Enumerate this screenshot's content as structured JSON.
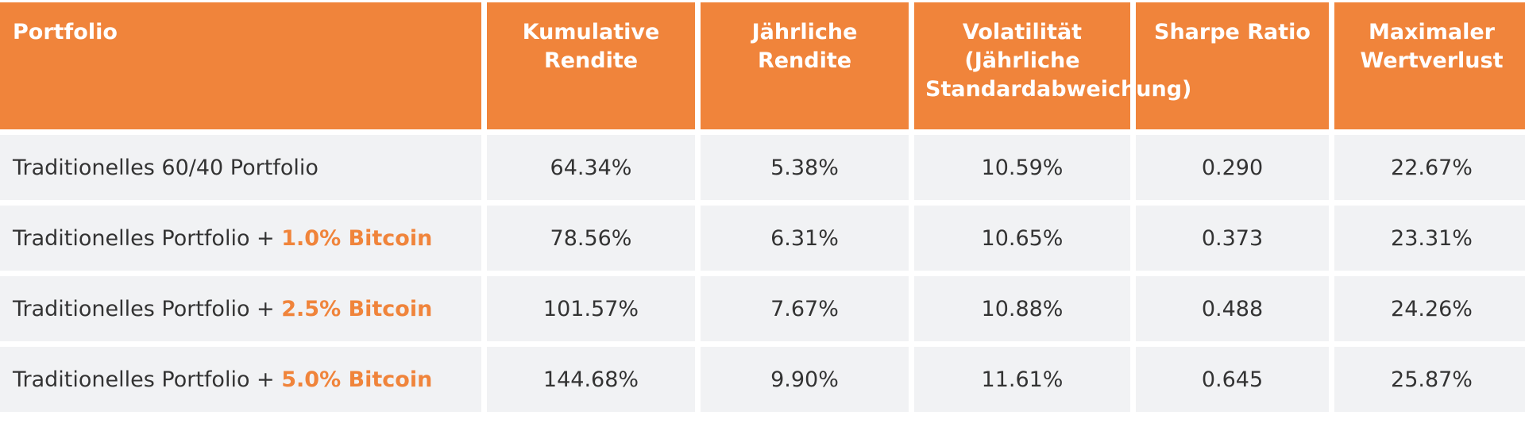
{
  "chart_data": {
    "type": "table",
    "colors": {
      "header_bg": "#f0843b",
      "header_text": "#ffffff",
      "cell_bg": "#f1f2f4",
      "cell_text": "#333333",
      "highlight": "#f0843b"
    },
    "columns": [
      "Portfolio",
      "Kumulative Rendite",
      "Jährliche Rendite",
      "Volatilität (Jährliche Standardabweichung)",
      "Sharpe Ratio",
      "Maximaler Wertverlust"
    ],
    "rows": [
      {
        "portfolio": "Traditionelles 60/40 Portfolio",
        "highlight": "",
        "cumulative": "64.34%",
        "annual": "5.38%",
        "volatility": "10.59%",
        "sharpe": "0.290",
        "drawdown": "22.67%"
      },
      {
        "portfolio": "Traditionelles Portfolio + ",
        "highlight": "1.0% Bitcoin",
        "cumulative": "78.56%",
        "annual": "6.31%",
        "volatility": "10.65%",
        "sharpe": "0.373",
        "drawdown": "23.31%"
      },
      {
        "portfolio": "Traditionelles Portfolio + ",
        "highlight": "2.5% Bitcoin",
        "cumulative": "101.57%",
        "annual": "7.67%",
        "volatility": "10.88%",
        "sharpe": "0.488",
        "drawdown": "24.26%"
      },
      {
        "portfolio": "Traditionelles Portfolio + ",
        "highlight": "5.0% Bitcoin",
        "cumulative": "144.68%",
        "annual": "9.90%",
        "volatility": "11.61%",
        "sharpe": "0.645",
        "drawdown": "25.87%"
      }
    ]
  }
}
